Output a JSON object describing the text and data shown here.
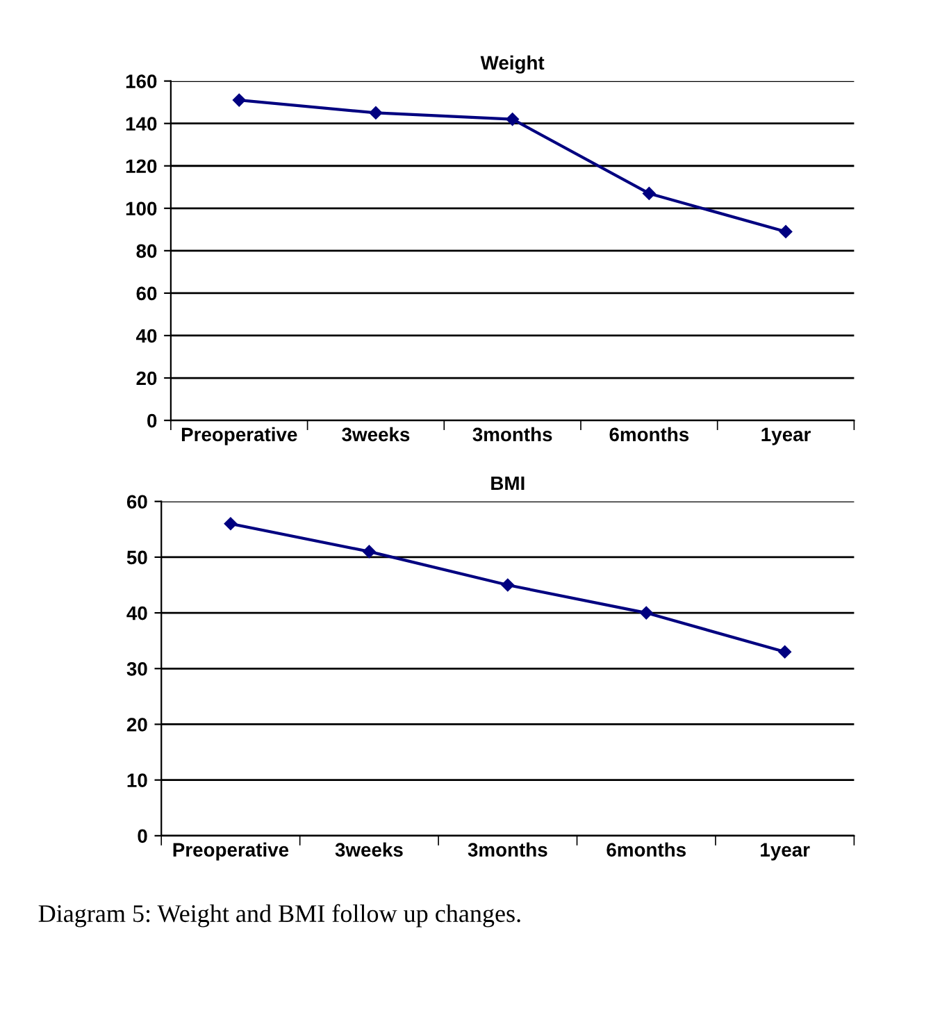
{
  "chart_data": [
    {
      "type": "line",
      "title": "Weight",
      "categories": [
        "Preoperative",
        "3weeks",
        "3months",
        "6months",
        "1year"
      ],
      "series": [
        {
          "color": "#000080",
          "values": [
            151,
            145,
            142,
            107,
            89
          ]
        }
      ],
      "ylim": [
        0,
        160
      ],
      "yticks": [
        0,
        20,
        40,
        60,
        80,
        100,
        120,
        140,
        160
      ],
      "grid": "y",
      "marker": "diamond",
      "line_style": "solid",
      "legend": false
    },
    {
      "type": "line",
      "title": "BMI",
      "categories": [
        "Preoperative",
        "3weeks",
        "3months",
        "6months",
        "1year"
      ],
      "series": [
        {
          "color": "#000080",
          "values": [
            56,
            51,
            45,
            40,
            33
          ]
        }
      ],
      "ylim": [
        0,
        60
      ],
      "yticks": [
        0,
        10,
        20,
        30,
        40,
        50,
        60
      ],
      "grid": "y",
      "marker": "diamond",
      "line_style": "solid",
      "legend": false,
      "annotations": [
        "Diagram 5: Weight and BMI follow up changes."
      ]
    }
  ]
}
